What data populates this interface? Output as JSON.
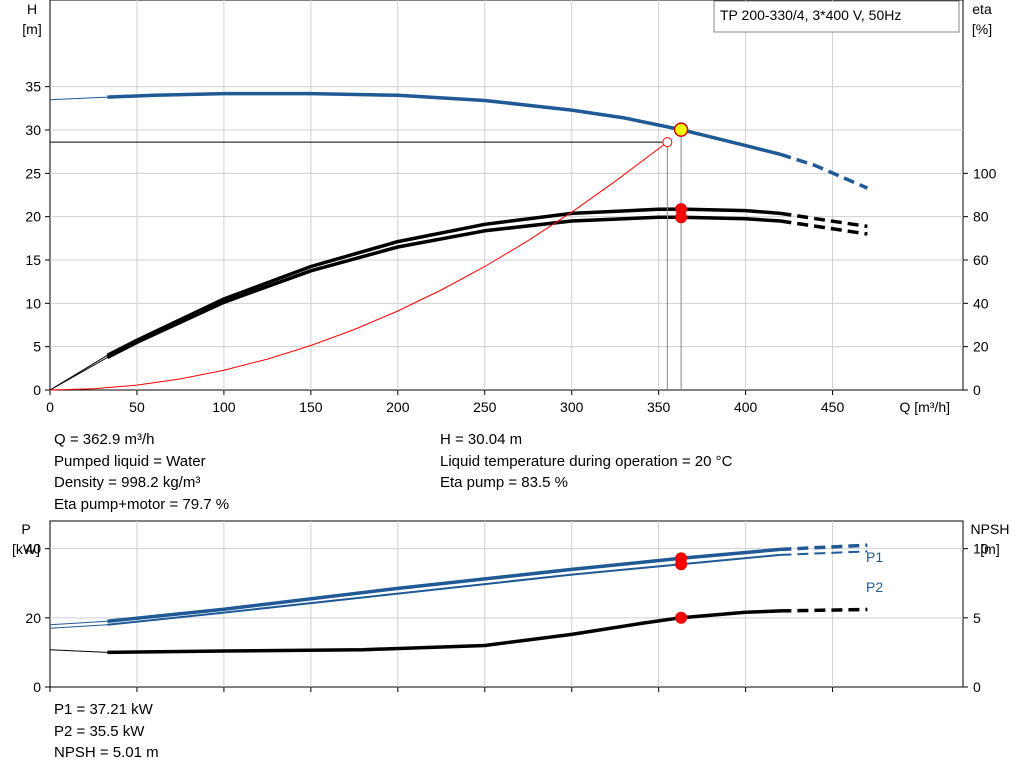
{
  "chart_data": [
    {
      "type": "line",
      "title": "TP 200-330/4, 3*400 V, 50Hz",
      "xlabel": "Q [m³/h]",
      "ylabel_left": [
        "H",
        "[m]"
      ],
      "ylabel_right": [
        "eta",
        "[%]"
      ],
      "xlim": [
        0,
        525
      ],
      "ylim_left": [
        0,
        45
      ],
      "ylim_right": [
        0,
        180
      ],
      "x_ticks": [
        0,
        50,
        100,
        150,
        200,
        250,
        300,
        350,
        400,
        450
      ],
      "y_ticks_left": [
        0,
        5,
        10,
        15,
        20,
        25,
        30,
        35
      ],
      "y_ticks_right": [
        0,
        20,
        40,
        60,
        80,
        100
      ],
      "grid": true,
      "series": [
        {
          "key": "H",
          "axis": "left",
          "color": "#1f5a96",
          "x": [
            0,
            33,
            60,
            100,
            150,
            200,
            250,
            300,
            330,
            362.9,
            380,
            400,
            420
          ],
          "y": [
            33.5,
            33.8,
            34.0,
            34.2,
            34.2,
            34.0,
            33.4,
            32.3,
            31.4,
            30.04,
            29.2,
            28.2,
            27.2
          ],
          "dashed_x": [
            420,
            440,
            470
          ],
          "dashed_y": [
            27.2,
            25.9,
            23.3
          ]
        },
        {
          "key": "eta_pump",
          "axis": "right",
          "color": "#000000",
          "x": [
            0,
            33,
            50,
            100,
            150,
            200,
            250,
            300,
            350,
            362.9,
            400,
            420
          ],
          "y": [
            0,
            16,
            23,
            42,
            57,
            68.5,
            76.5,
            81.5,
            83.4,
            83.5,
            82.8,
            81.5
          ],
          "dashed_x": [
            420,
            470
          ],
          "dashed_y": [
            81.5,
            75.5
          ]
        },
        {
          "key": "eta_total",
          "axis": "right",
          "color": "#000000",
          "x": [
            0,
            33,
            50,
            100,
            150,
            200,
            250,
            300,
            350,
            362.9,
            400,
            420
          ],
          "y": [
            0,
            15,
            22,
            40.5,
            55,
            66,
            73.5,
            78,
            79.7,
            79.7,
            79,
            78
          ],
          "dashed_x": [
            420,
            470
          ],
          "dashed_y": [
            78,
            72
          ]
        },
        {
          "key": "system",
          "axis": "left",
          "color": "#ff0000",
          "x": [
            0,
            25,
            50,
            75,
            100,
            125,
            150,
            175,
            200,
            225,
            250,
            275,
            300,
            325,
            355
          ],
          "y": [
            0,
            0.14,
            0.57,
            1.28,
            2.28,
            3.56,
            5.13,
            6.98,
            9.12,
            11.54,
            14.25,
            17.24,
            20.52,
            24.08,
            28.6
          ]
        }
      ],
      "duty_point": {
        "x": 362.9,
        "y": 30.04
      },
      "setpoint": {
        "x": 355,
        "y": 28.6
      },
      "eta_points": [
        83.5,
        79.7
      ]
    },
    {
      "type": "line",
      "ylabel_left": [
        "P",
        "[kW]"
      ],
      "ylabel_right": [
        "NPSH",
        "[m]"
      ],
      "xlim": [
        0,
        525
      ],
      "ylim_left": [
        0,
        48
      ],
      "ylim_right": [
        0,
        12
      ],
      "x_ticks": [
        0,
        50,
        100,
        150,
        200,
        250,
        300,
        350,
        400,
        450
      ],
      "y_ticks_left": [
        0,
        20,
        40
      ],
      "y_ticks_right": [
        0,
        5,
        10
      ],
      "grid": true,
      "series": [
        {
          "key": "P1",
          "name": "P1",
          "axis": "left",
          "color": "#1f5a96",
          "x": [
            0,
            33,
            100,
            200,
            300,
            362.9,
            420
          ],
          "y": [
            18,
            19,
            22.5,
            28.5,
            34,
            37.21,
            39.8
          ],
          "dashed_x": [
            420,
            470
          ],
          "dashed_y": [
            39.8,
            41
          ]
        },
        {
          "key": "P2",
          "name": "P2",
          "axis": "left",
          "color": "#1f5a96",
          "x": [
            0,
            33,
            100,
            200,
            300,
            362.9,
            420
          ],
          "y": [
            17,
            18,
            21.5,
            27,
            32.5,
            35.5,
            38.2
          ],
          "dashed_x": [
            420,
            470
          ],
          "dashed_y": [
            38.2,
            39.2
          ]
        },
        {
          "key": "NPSH",
          "axis": "right",
          "color": "#000000",
          "x": [
            0,
            33,
            100,
            180,
            250,
            300,
            340,
            362.9,
            400,
            420
          ],
          "y": [
            2.7,
            2.5,
            2.6,
            2.7,
            3.0,
            3.8,
            4.6,
            5.01,
            5.4,
            5.5
          ],
          "dashed_x": [
            420,
            470
          ],
          "dashed_y": [
            5.5,
            5.6
          ]
        }
      ],
      "points": {
        "P1": 37.21,
        "P2": 35.5,
        "NPSH": 5.01,
        "x": 362.9
      }
    }
  ],
  "info_top": {
    "left": [
      "Q = 362.9 m³/h",
      "Pumped liquid = Water",
      "Density = 998.2 kg/m³",
      "Eta pump+motor = 79.7 %"
    ],
    "right": [
      "H = 30.04 m",
      "Liquid temperature during operation = 20 °C",
      "Eta pump = 83.5 %"
    ]
  },
  "info_bottom": [
    "P1 = 37.21 kW",
    "P2 = 35.5 kW",
    "NPSH = 5.01 m"
  ]
}
